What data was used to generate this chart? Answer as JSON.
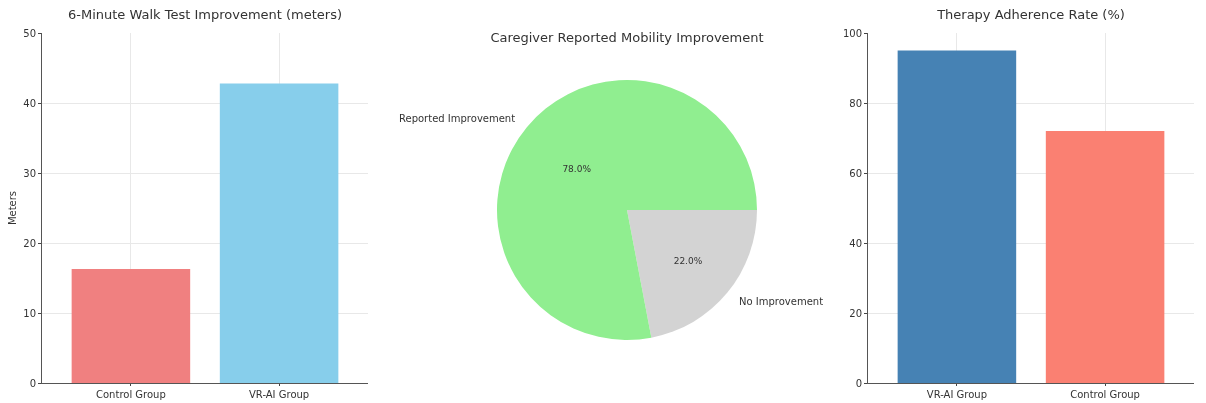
{
  "chart_data": [
    {
      "type": "bar",
      "title": "6-Minute Walk Test Improvement (meters)",
      "ylabel": "Meters",
      "categories": [
        "Control Group",
        "VR-AI Group"
      ],
      "values": [
        16.3,
        42.8
      ],
      "colors": [
        "#f08080",
        "#87ceeb"
      ],
      "ylim": [
        0,
        50
      ],
      "yticks": [
        0,
        10,
        20,
        30,
        40,
        50
      ],
      "grid": true
    },
    {
      "type": "pie",
      "title": "Caregiver Reported Mobility Improvement",
      "categories": [
        "Reported Improvement",
        "No Improvement"
      ],
      "values": [
        78,
        22
      ],
      "colors": [
        "#90ee90",
        "#d3d3d3"
      ],
      "value_labels": [
        "78.0%",
        "22.0%"
      ]
    },
    {
      "type": "bar",
      "title": "Therapy Adherence Rate (%)",
      "categories": [
        "VR-AI Group",
        "Control Group"
      ],
      "values": [
        95,
        72
      ],
      "colors": [
        "#4682b4",
        "#fa8072"
      ],
      "ylim": [
        0,
        100
      ],
      "yticks": [
        0,
        20,
        40,
        60,
        80,
        100
      ],
      "grid": true
    }
  ]
}
